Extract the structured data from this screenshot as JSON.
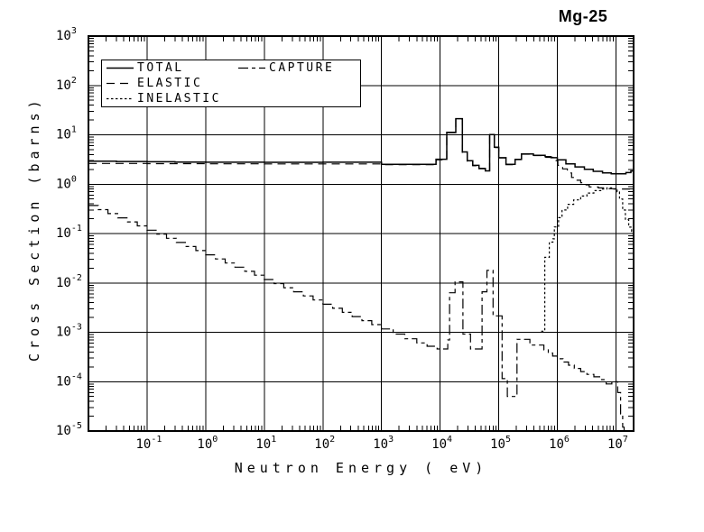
{
  "window_title": "Mg-25",
  "chart_data": {
    "type": "line",
    "title": "Mg-25",
    "xlabel": "Neutron Energy ( eV)",
    "ylabel": "Cross Section (barns)",
    "x_scale": "log",
    "y_scale": "log",
    "xlim": [
      0.01,
      20000000.0
    ],
    "ylim": [
      1e-05,
      1000
    ],
    "x_tick_exponents": [
      -1,
      0,
      1,
      2,
      3,
      4,
      5,
      6,
      7
    ],
    "y_tick_exponents": [
      3,
      2,
      1,
      0,
      -1,
      -2,
      -3,
      -4,
      -5
    ],
    "grid": true,
    "legend_position": "top-left",
    "line_color": "#000000",
    "background_color": "#ffffff",
    "interpolation": "step-after",
    "series": [
      {
        "name": "TOTAL",
        "style": "solid",
        "points": [
          [
            0.01,
            2.92
          ],
          [
            0.03,
            2.88
          ],
          [
            0.1,
            2.84
          ],
          [
            0.3,
            2.8
          ],
          [
            1,
            2.78
          ],
          [
            10,
            2.77
          ],
          [
            100,
            2.78
          ],
          [
            1000.0,
            2.52
          ],
          [
            8500.0,
            3.2
          ],
          [
            13000.0,
            11.2
          ],
          [
            18500.0,
            21.2
          ],
          [
            24000.0,
            4.5
          ],
          [
            29000.0,
            2.98
          ],
          [
            36000.0,
            2.4
          ],
          [
            46000.0,
            2.08
          ],
          [
            59000.0,
            1.86
          ],
          [
            70000.0,
            10.1
          ],
          [
            84000.0,
            5.6
          ],
          [
            100000.0,
            3.44
          ],
          [
            133000.0,
            2.52
          ],
          [
            190000.0,
            3.18
          ],
          [
            245000.0,
            4.1
          ],
          [
            390000.0,
            3.85
          ],
          [
            620000.0,
            3.6
          ],
          [
            780000.0,
            3.44
          ],
          [
            1000000.0,
            3.1
          ],
          [
            1400000.0,
            2.58
          ],
          [
            2000000.0,
            2.24
          ],
          [
            2900000.0,
            2.0
          ],
          [
            4100000.0,
            1.82
          ],
          [
            5900000.0,
            1.69
          ],
          [
            8300000.0,
            1.62
          ],
          [
            14800000.0,
            1.72
          ],
          [
            18000000.0,
            1.85
          ],
          [
            20000000.0,
            1.87
          ]
        ]
      },
      {
        "name": "ELASTIC",
        "style": "dash",
        "points": [
          [
            0.01,
            2.62
          ],
          [
            0.1,
            2.6
          ],
          [
            1,
            2.58
          ],
          [
            10,
            2.57
          ],
          [
            100,
            2.57
          ],
          [
            1000.0,
            2.48
          ],
          [
            8500.0,
            3.1
          ],
          [
            13000.0,
            11.0
          ],
          [
            18500.0,
            21.0
          ],
          [
            24000.0,
            4.4
          ],
          [
            29000.0,
            2.93
          ],
          [
            36000.0,
            2.36
          ],
          [
            46000.0,
            2.05
          ],
          [
            59000.0,
            1.83
          ],
          [
            70000.0,
            10.0
          ],
          [
            84000.0,
            5.5
          ],
          [
            100000.0,
            3.4
          ],
          [
            133000.0,
            2.49
          ],
          [
            190000.0,
            3.15
          ],
          [
            245000.0,
            4.05
          ],
          [
            390000.0,
            3.8
          ],
          [
            620000.0,
            3.5
          ],
          [
            860000.0,
            3.0
          ],
          [
            1020000.0,
            2.4
          ],
          [
            1230000.0,
            2.04
          ],
          [
            1480000.0,
            1.69
          ],
          [
            1750000.0,
            1.37
          ],
          [
            2100000.0,
            1.2
          ],
          [
            2500000.0,
            1.07
          ],
          [
            2900000.0,
            0.97
          ],
          [
            3500000.0,
            0.88
          ],
          [
            5000000.0,
            0.84
          ],
          [
            7200000.0,
            0.81
          ],
          [
            10500000.0,
            0.8
          ],
          [
            20000000.0,
            0.8
          ]
        ]
      },
      {
        "name": "INELASTIC",
        "style": "dot",
        "points": [
          [
            530000.0,
            0.00105
          ],
          [
            610000.0,
            0.033
          ],
          [
            730000.0,
            0.067
          ],
          [
            840000.0,
            0.078
          ],
          [
            890000.0,
            0.136
          ],
          [
            1050000.0,
            0.21
          ],
          [
            1200000.0,
            0.3
          ],
          [
            1500000.0,
            0.39
          ],
          [
            1900000.0,
            0.48
          ],
          [
            2500000.0,
            0.575
          ],
          [
            3200000.0,
            0.66
          ],
          [
            4200000.0,
            0.74
          ],
          [
            5500000.0,
            0.8
          ],
          [
            7000000.0,
            0.84
          ],
          [
            9000000.0,
            0.8
          ],
          [
            10500000.0,
            0.7
          ],
          [
            11500000.0,
            0.5
          ],
          [
            13000000.0,
            0.3
          ],
          [
            14500000.0,
            0.19
          ],
          [
            16500000.0,
            0.135
          ],
          [
            18500000.0,
            0.11
          ],
          [
            20000000.0,
            0.1
          ]
        ]
      },
      {
        "name": "CAPTURE",
        "style": "dashdot",
        "points": [
          [
            0.01,
            0.37
          ],
          [
            0.0147,
            0.305
          ],
          [
            0.0215,
            0.253
          ],
          [
            0.0316,
            0.208
          ],
          [
            0.0464,
            0.172
          ],
          [
            0.0681,
            0.143
          ],
          [
            0.1,
            0.117
          ],
          [
            0.147,
            0.097
          ],
          [
            0.215,
            0.08
          ],
          [
            0.316,
            0.066
          ],
          [
            0.464,
            0.0545
          ],
          [
            0.681,
            0.0451
          ],
          [
            1,
            0.037
          ],
          [
            1.47,
            0.0306
          ],
          [
            2.15,
            0.0253
          ],
          [
            3.16,
            0.0208
          ],
          [
            4.64,
            0.0172
          ],
          [
            6.81,
            0.0143
          ],
          [
            10,
            0.0117
          ],
          [
            14.7,
            0.0097
          ],
          [
            21.5,
            0.008
          ],
          [
            31.6,
            0.0066
          ],
          [
            46.4,
            0.00545
          ],
          [
            68.1,
            0.00451
          ],
          [
            100,
            0.0037
          ],
          [
            147,
            0.00306
          ],
          [
            215,
            0.00253
          ],
          [
            316,
            0.00208
          ],
          [
            464,
            0.00172
          ],
          [
            681,
            0.00143
          ],
          [
            1000.0,
            0.00117
          ],
          [
            1580.0,
            0.00092
          ],
          [
            2500.0,
            0.00074
          ],
          [
            4000.0,
            0.00061
          ],
          [
            6000.0,
            0.00052
          ],
          [
            8900.0,
            0.00046
          ],
          [
            13500.0,
            0.0007
          ],
          [
            14500.0,
            0.0063
          ],
          [
            18000.0,
            0.0105
          ],
          [
            24500.0,
            0.00092
          ],
          [
            33000.0,
            0.00046
          ],
          [
            52000.0,
            0.0066
          ],
          [
            63000.0,
            0.018
          ],
          [
            80000.0,
            0.00215
          ],
          [
            114000.0,
            0.000115
          ],
          [
            140000.0,
            5e-05
          ],
          [
            205000.0,
            0.00072
          ],
          [
            340000.0,
            0.00055
          ],
          [
            590000.0,
            0.00044
          ],
          [
            700000.0,
            0.00038
          ],
          [
            830000.0,
            0.00033
          ],
          [
            1000000.0,
            0.00029
          ],
          [
            1250000.0,
            0.00025
          ],
          [
            1550000.0,
            0.000215
          ],
          [
            1950000.0,
            0.000185
          ],
          [
            2500000.0,
            0.00016
          ],
          [
            3200000.0,
            0.00014
          ],
          [
            4200000.0,
            0.000125
          ],
          [
            5500000.0,
            0.00011
          ],
          [
            6800000.0,
            9e-05
          ],
          [
            8500000.0,
            0.0001
          ],
          [
            10700000.0,
            6e-05
          ],
          [
            12000000.0,
            2.2e-05
          ],
          [
            13000000.0,
            1.2e-05
          ],
          [
            13800000.0,
            1e-05
          ]
        ]
      }
    ]
  }
}
